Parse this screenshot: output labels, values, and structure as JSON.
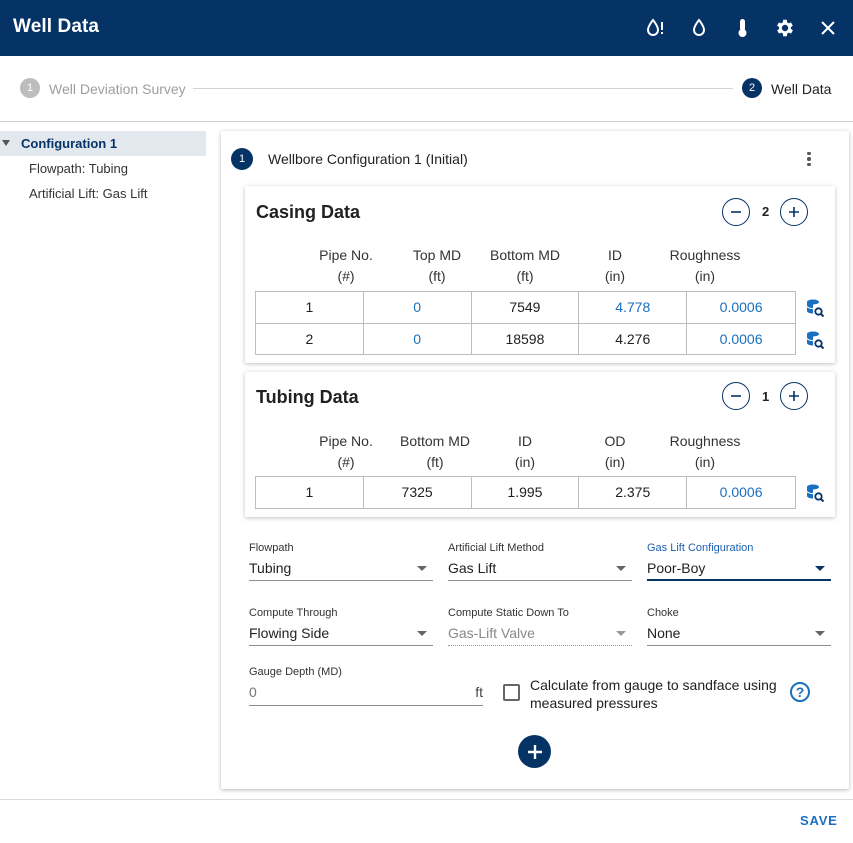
{
  "header": {
    "title": "Well Data"
  },
  "stepper": {
    "steps": [
      {
        "num": "1",
        "label": "Well Deviation Survey"
      },
      {
        "num": "2",
        "label": "Well Data"
      }
    ]
  },
  "tree": {
    "config": "Configuration 1",
    "children": [
      "Flowpath: Tubing",
      "Artificial Lift: Gas Lift"
    ]
  },
  "wellbore": {
    "num": "1",
    "title": "Wellbore Configuration 1 (Initial)"
  },
  "casing": {
    "title": "Casing Data",
    "count": "2",
    "headers": [
      [
        "Pipe No.",
        "(#)"
      ],
      [
        "Top MD",
        "(ft)"
      ],
      [
        "Bottom MD",
        "(ft)"
      ],
      [
        "ID",
        "(in)"
      ],
      [
        "Roughness",
        "(in)"
      ]
    ],
    "rows": [
      [
        "1",
        "0",
        "7549",
        "4.778",
        "0.0006"
      ],
      [
        "2",
        "0",
        "18598",
        "4.276",
        "0.0006"
      ]
    ]
  },
  "tubing": {
    "title": "Tubing Data",
    "count": "1",
    "headers": [
      [
        "Pipe No.",
        "(#)"
      ],
      [
        "Bottom MD",
        "(ft)"
      ],
      [
        "ID",
        "(in)"
      ],
      [
        "OD",
        "(in)"
      ],
      [
        "Roughness",
        "(in)"
      ]
    ],
    "rows": [
      [
        "1",
        "7325",
        "1.995",
        "2.375",
        "0.0006"
      ]
    ]
  },
  "fields": {
    "flowpath": {
      "label": "Flowpath",
      "value": "Tubing"
    },
    "lift_method": {
      "label": "Artificial Lift Method",
      "value": "Gas Lift"
    },
    "gl_config": {
      "label": "Gas Lift Configuration",
      "value": "Poor-Boy"
    },
    "compute_through": {
      "label": "Compute Through",
      "value": "Flowing Side"
    },
    "static_down": {
      "label": "Compute Static Down To",
      "value": "Gas-Lift Valve"
    },
    "choke": {
      "label": "Choke",
      "value": "None"
    },
    "gauge": {
      "label": "Gauge Depth (MD)",
      "placeholder": "0",
      "unit": "ft"
    }
  },
  "calc_checkbox": {
    "label_line1": "Calculate from gauge to sandface using",
    "label_line2": "measured pressures",
    "checked": false
  },
  "footer": {
    "save": "SAVE"
  },
  "colors": {
    "primary": "#053366",
    "link": "#1a6fc0"
  }
}
